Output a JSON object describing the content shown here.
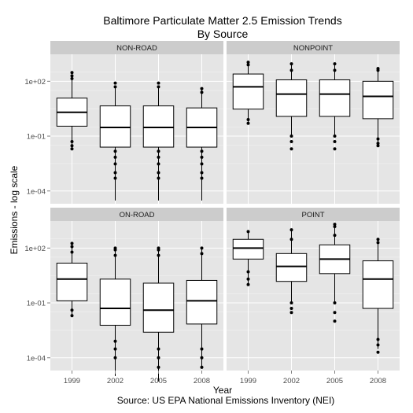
{
  "chart_data": {
    "type": "boxplot",
    "title": "Baltimore Particulate Matter 2.5 Emission Trends",
    "subtitle": "By Source",
    "xlabel": "Year",
    "caption": "Source: US EPA National Emissions Inventory (NEI)",
    "ylabel": "Emissions - log scale",
    "y_scale": "log10",
    "ylim": [
      2e-05,
      3000
    ],
    "y_ticks": [
      {
        "value": 100,
        "label": "1e+02"
      },
      {
        "value": 0.1,
        "label": "1e-01"
      },
      {
        "value": 0.0001,
        "label": "1e-04"
      }
    ],
    "categories": [
      "1999",
      "2002",
      "2005",
      "2008"
    ],
    "grid": true,
    "facets": [
      {
        "name": "NON-ROAD",
        "boxes": [
          {
            "q1": 0.35,
            "median": 2.0,
            "q3": 12,
            "whisker_low": 0.02,
            "whisker_high": 200,
            "outliers": [
              0.02,
              0.03,
              0.05,
              140,
              200,
              300
            ]
          },
          {
            "q1": 0.025,
            "median": 0.3,
            "q3": 4.5,
            "whisker_low": 3e-05,
            "whisker_high": 60,
            "outliers": [
              0.0005,
              0.001,
              0.003,
              0.007,
              0.015,
              50,
              80
            ]
          },
          {
            "q1": 0.025,
            "median": 0.3,
            "q3": 4.5,
            "whisker_low": 3e-05,
            "whisker_high": 60,
            "outliers": [
              0.0005,
              0.001,
              0.003,
              0.007,
              0.015,
              50,
              80
            ]
          },
          {
            "q1": 0.025,
            "median": 0.3,
            "q3": 3.5,
            "whisker_low": 3e-05,
            "whisker_high": 45,
            "outliers": [
              0.0005,
              0.001,
              0.003,
              0.007,
              0.015,
              25,
              40
            ]
          }
        ]
      },
      {
        "name": "NONPOINT",
        "boxes": [
          {
            "q1": 3,
            "median": 50,
            "q3": 250,
            "whisker_low": 0.5,
            "whisker_high": 1000,
            "outliers": [
              0.5,
              0.8,
              800,
              1100
            ]
          },
          {
            "q1": 1.2,
            "median": 20,
            "q3": 120,
            "whisker_low": 0.1,
            "whisker_high": 900,
            "outliers": [
              0.02,
              0.05,
              0.1,
              400,
              900
            ]
          },
          {
            "q1": 1.2,
            "median": 20,
            "q3": 120,
            "whisker_low": 0.1,
            "whisker_high": 900,
            "outliers": [
              0.02,
              0.05,
              0.1,
              400,
              900
            ]
          },
          {
            "q1": 0.9,
            "median": 15,
            "q3": 100,
            "whisker_low": 0.03,
            "whisker_high": 600,
            "outliers": [
              0.03,
              0.04,
              0.07,
              400,
              500
            ]
          }
        ]
      },
      {
        "name": "ON-ROAD",
        "boxes": [
          {
            "q1": 0.13,
            "median": 2.0,
            "q3": 15,
            "whisker_low": 0.02,
            "whisker_high": 180,
            "outliers": [
              0.02,
              0.04,
              60,
              120,
              180
            ]
          },
          {
            "q1": 0.006,
            "median": 0.05,
            "q3": 2.0,
            "whisker_low": 1e-05,
            "whisker_high": 100,
            "outliers": [
              0.0001,
              0.0003,
              0.0008,
              40,
              80,
              100
            ]
          },
          {
            "q1": 0.0025,
            "median": 0.04,
            "q3": 1.2,
            "whisker_low": 5e-06,
            "whisker_high": 100,
            "outliers": [
              3e-05,
              0.0001,
              0.0003,
              40,
              80,
              100
            ]
          },
          {
            "q1": 0.007,
            "median": 0.13,
            "q3": 1.7,
            "whisker_low": 3e-05,
            "whisker_high": 100,
            "outliers": [
              3e-05,
              0.0001,
              0.0003,
              50,
              100
            ]
          }
        ]
      },
      {
        "name": "POINT",
        "boxes": [
          {
            "q1": 25,
            "median": 100,
            "q3": 300,
            "whisker_low": 1,
            "whisker_high": 800,
            "outliers": [
              1,
              2,
              5,
              800
            ]
          },
          {
            "q1": 1.5,
            "median": 10,
            "q3": 50,
            "whisker_low": 0.1,
            "whisker_high": 1000,
            "outliers": [
              0.03,
              0.05,
              0.1,
              300,
              1000
            ]
          },
          {
            "q1": 4,
            "median": 25,
            "q3": 150,
            "whisker_low": 0.1,
            "whisker_high": 1500,
            "outliers": [
              0.01,
              0.03,
              0.1,
              500,
              1500,
              2000
            ]
          },
          {
            "q1": 0.05,
            "median": 2.0,
            "q3": 20,
            "whisker_low": 0.0003,
            "whisker_high": 300,
            "outliers": [
              0.0002,
              0.0005,
              0.001,
              200,
              300
            ]
          }
        ]
      }
    ]
  }
}
